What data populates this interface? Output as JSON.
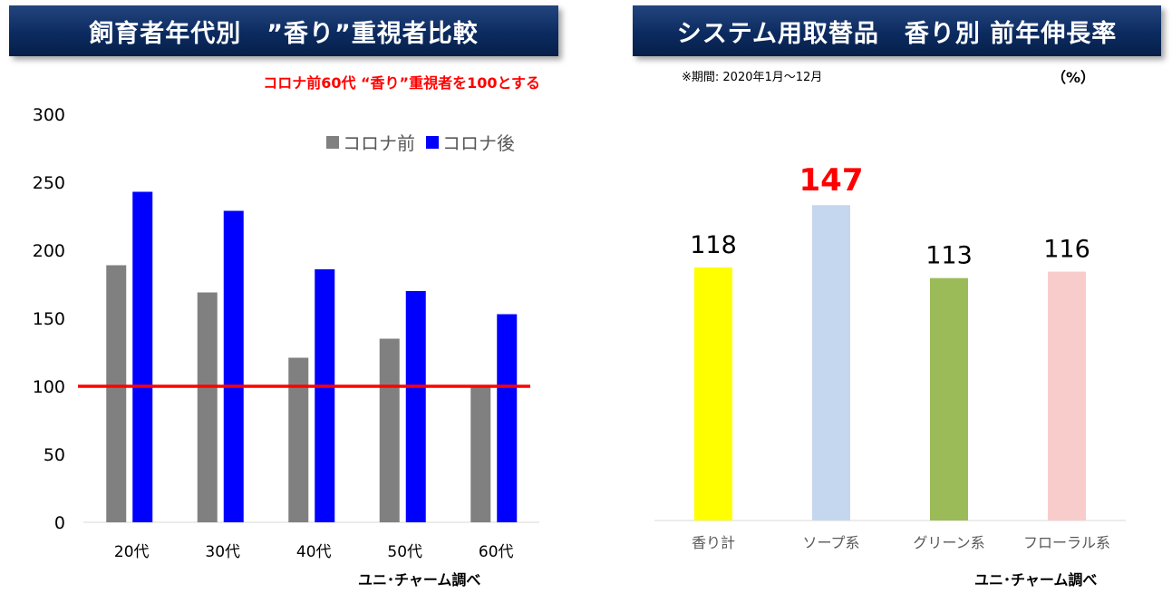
{
  "left": {
    "title": "飼育者年代別　”香り”重視者比較",
    "note": "コロナ前60代 “香り”重視者を100とする",
    "source": "ユニ･チャーム調べ"
  },
  "right": {
    "title": "システム用取替品　香り別 前年伸長率",
    "period": "※期間: 2020年1月〜12月",
    "unit": "（%）",
    "source": "ユニ･チャーム調べ"
  },
  "colors": {
    "title_bg": "#0b2b60",
    "before": "#808080",
    "after": "#0000ff",
    "reference_line": "#ff0000",
    "highlight_label": "#ff0000"
  },
  "chart_data": [
    {
      "type": "bar",
      "categories": [
        "20代",
        "30代",
        "40代",
        "50代",
        "60代"
      ],
      "series": [
        {
          "name": "コロナ前",
          "values": [
            189,
            169,
            121,
            135,
            100
          ],
          "color": "#808080"
        },
        {
          "name": "コロナ後",
          "values": [
            243,
            229,
            186,
            170,
            153
          ],
          "color": "#0000ff"
        }
      ],
      "ylim": [
        0,
        300
      ],
      "yticks": [
        0,
        50,
        100,
        150,
        200,
        250,
        300
      ],
      "reference_line": 100,
      "legend": "top-right",
      "grid": false
    },
    {
      "type": "bar",
      "categories": [
        "香り計",
        "ソープ系",
        "グリーン系",
        "フローラル系"
      ],
      "values": [
        118,
        147,
        113,
        116
      ],
      "colors": [
        "#ffff00",
        "#c5d7ef",
        "#9bbb59",
        "#f9cccc"
      ],
      "highlight_index": 1,
      "ylim": [
        0,
        175
      ],
      "grid": false
    }
  ]
}
